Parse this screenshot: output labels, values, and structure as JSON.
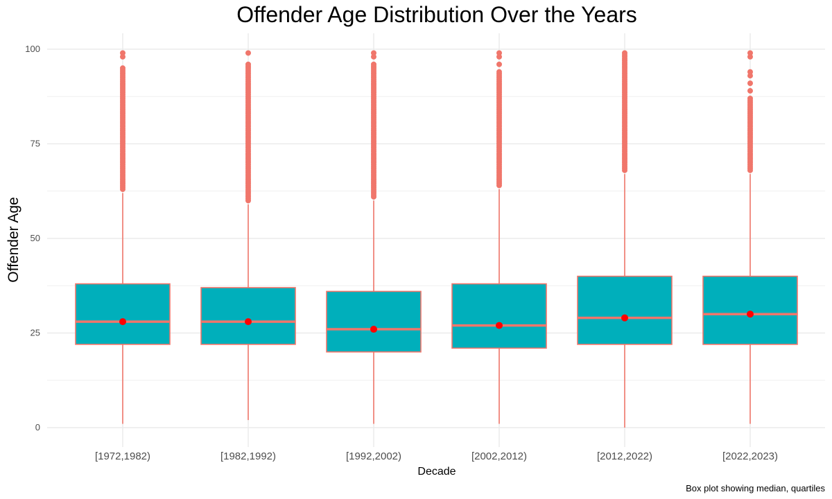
{
  "chart_data": {
    "type": "boxplot",
    "title": "Offender Age Distribution Over the Years",
    "xlabel": "Decade",
    "ylabel": "Offender Age",
    "caption": "Box plot showing median, quartiles",
    "ylim": [
      0,
      100
    ],
    "yticks": [
      0,
      25,
      50,
      75,
      100
    ],
    "grid": true,
    "legend": "none",
    "colors": {
      "box_fill": "#00AFBB",
      "outline": "#F0766B",
      "mean_point": "#FF0000",
      "grid": "#ebebeb"
    },
    "categories": [
      "[1972,1982)",
      "[1982,1992)",
      "[1992,2002)",
      "[2002,2012)",
      "[2012,2022)",
      "[2022,2023)"
    ],
    "boxes": [
      {
        "whisker_low": 1,
        "q1": 22,
        "median": 28,
        "q3": 38,
        "whisker_high": 62,
        "mean": 28,
        "outlier_range": [
          63,
          95
        ],
        "outliers_extra": [
          98,
          99
        ]
      },
      {
        "whisker_low": 2,
        "q1": 22,
        "median": 28,
        "q3": 37,
        "whisker_high": 59,
        "mean": 28,
        "outlier_range": [
          60,
          96
        ],
        "outliers_extra": [
          99
        ]
      },
      {
        "whisker_low": 1,
        "q1": 20,
        "median": 26,
        "q3": 36,
        "whisker_high": 60,
        "mean": 26,
        "outlier_range": [
          61,
          96
        ],
        "outliers_extra": [
          98,
          99
        ]
      },
      {
        "whisker_low": 1,
        "q1": 21,
        "median": 27,
        "q3": 38,
        "whisker_high": 63,
        "mean": 27,
        "outlier_range": [
          64,
          94
        ],
        "outliers_extra": [
          96,
          98,
          99
        ]
      },
      {
        "whisker_low": 0,
        "q1": 22,
        "median": 29,
        "q3": 40,
        "whisker_high": 67,
        "mean": 29,
        "outlier_range": [
          68,
          99
        ],
        "outliers_extra": []
      },
      {
        "whisker_low": 1,
        "q1": 22,
        "median": 30,
        "q3": 40,
        "whisker_high": 67,
        "mean": 30,
        "outlier_range": [
          68,
          87
        ],
        "outliers_extra": [
          89,
          91,
          93,
          94,
          98,
          99
        ]
      }
    ]
  }
}
